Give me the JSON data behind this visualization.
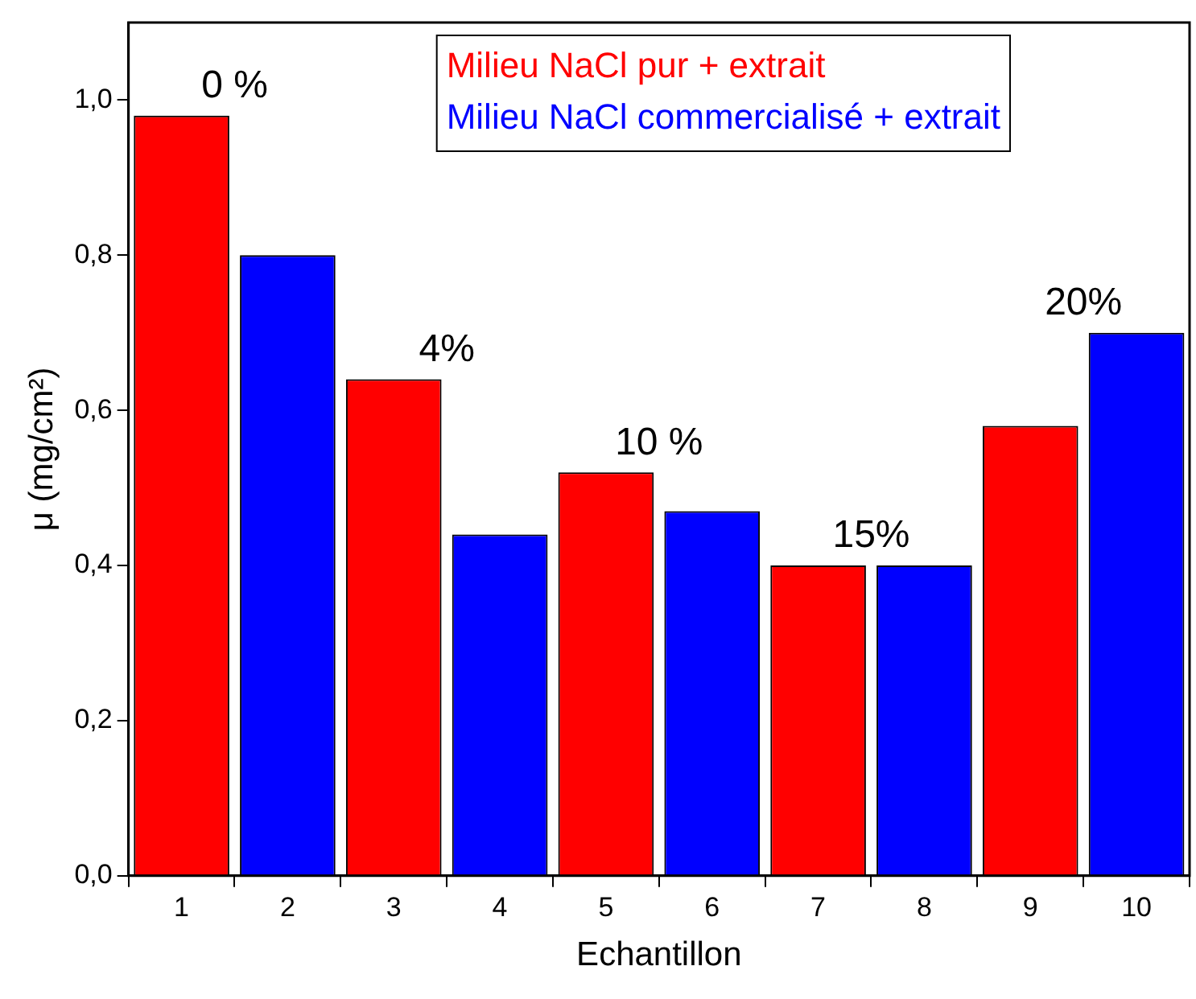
{
  "chart_data": {
    "type": "bar",
    "xlabel": "Echantillon",
    "ylabel": "μ (mg/cm²)",
    "xlim": [
      0.5,
      10.5
    ],
    "xticks": [
      1,
      2,
      3,
      4,
      5,
      6,
      7,
      8,
      9,
      10
    ],
    "ylim": [
      0,
      1.1
    ],
    "yticks": [
      {
        "value": 0,
        "label": "0,0"
      },
      {
        "value": 0.2,
        "label": "0,2"
      },
      {
        "value": 0.4,
        "label": "0,4"
      },
      {
        "value": 0.6,
        "label": "0,6"
      },
      {
        "value": 0.8,
        "label": "0,8"
      },
      {
        "value": 1,
        "label": "1,0"
      }
    ],
    "series": [
      {
        "name": "Milieu NaCl pur + extrait",
        "color": "#ff0000",
        "x": [
          1,
          3,
          5,
          7,
          9
        ],
        "values": [
          0.98,
          0.64,
          0.52,
          0.4,
          0.58
        ]
      },
      {
        "name": "Milieu NaCl commercialisé + extrait",
        "color": "#0000ff",
        "x": [
          2,
          4,
          6,
          8,
          10
        ],
        "values": [
          0.8,
          0.44,
          0.47,
          0.4,
          0.7
        ]
      }
    ],
    "annotations": [
      "0 %",
      "4%",
      "10 %",
      "15%",
      "20%"
    ],
    "legend": "top",
    "grid": false
  }
}
